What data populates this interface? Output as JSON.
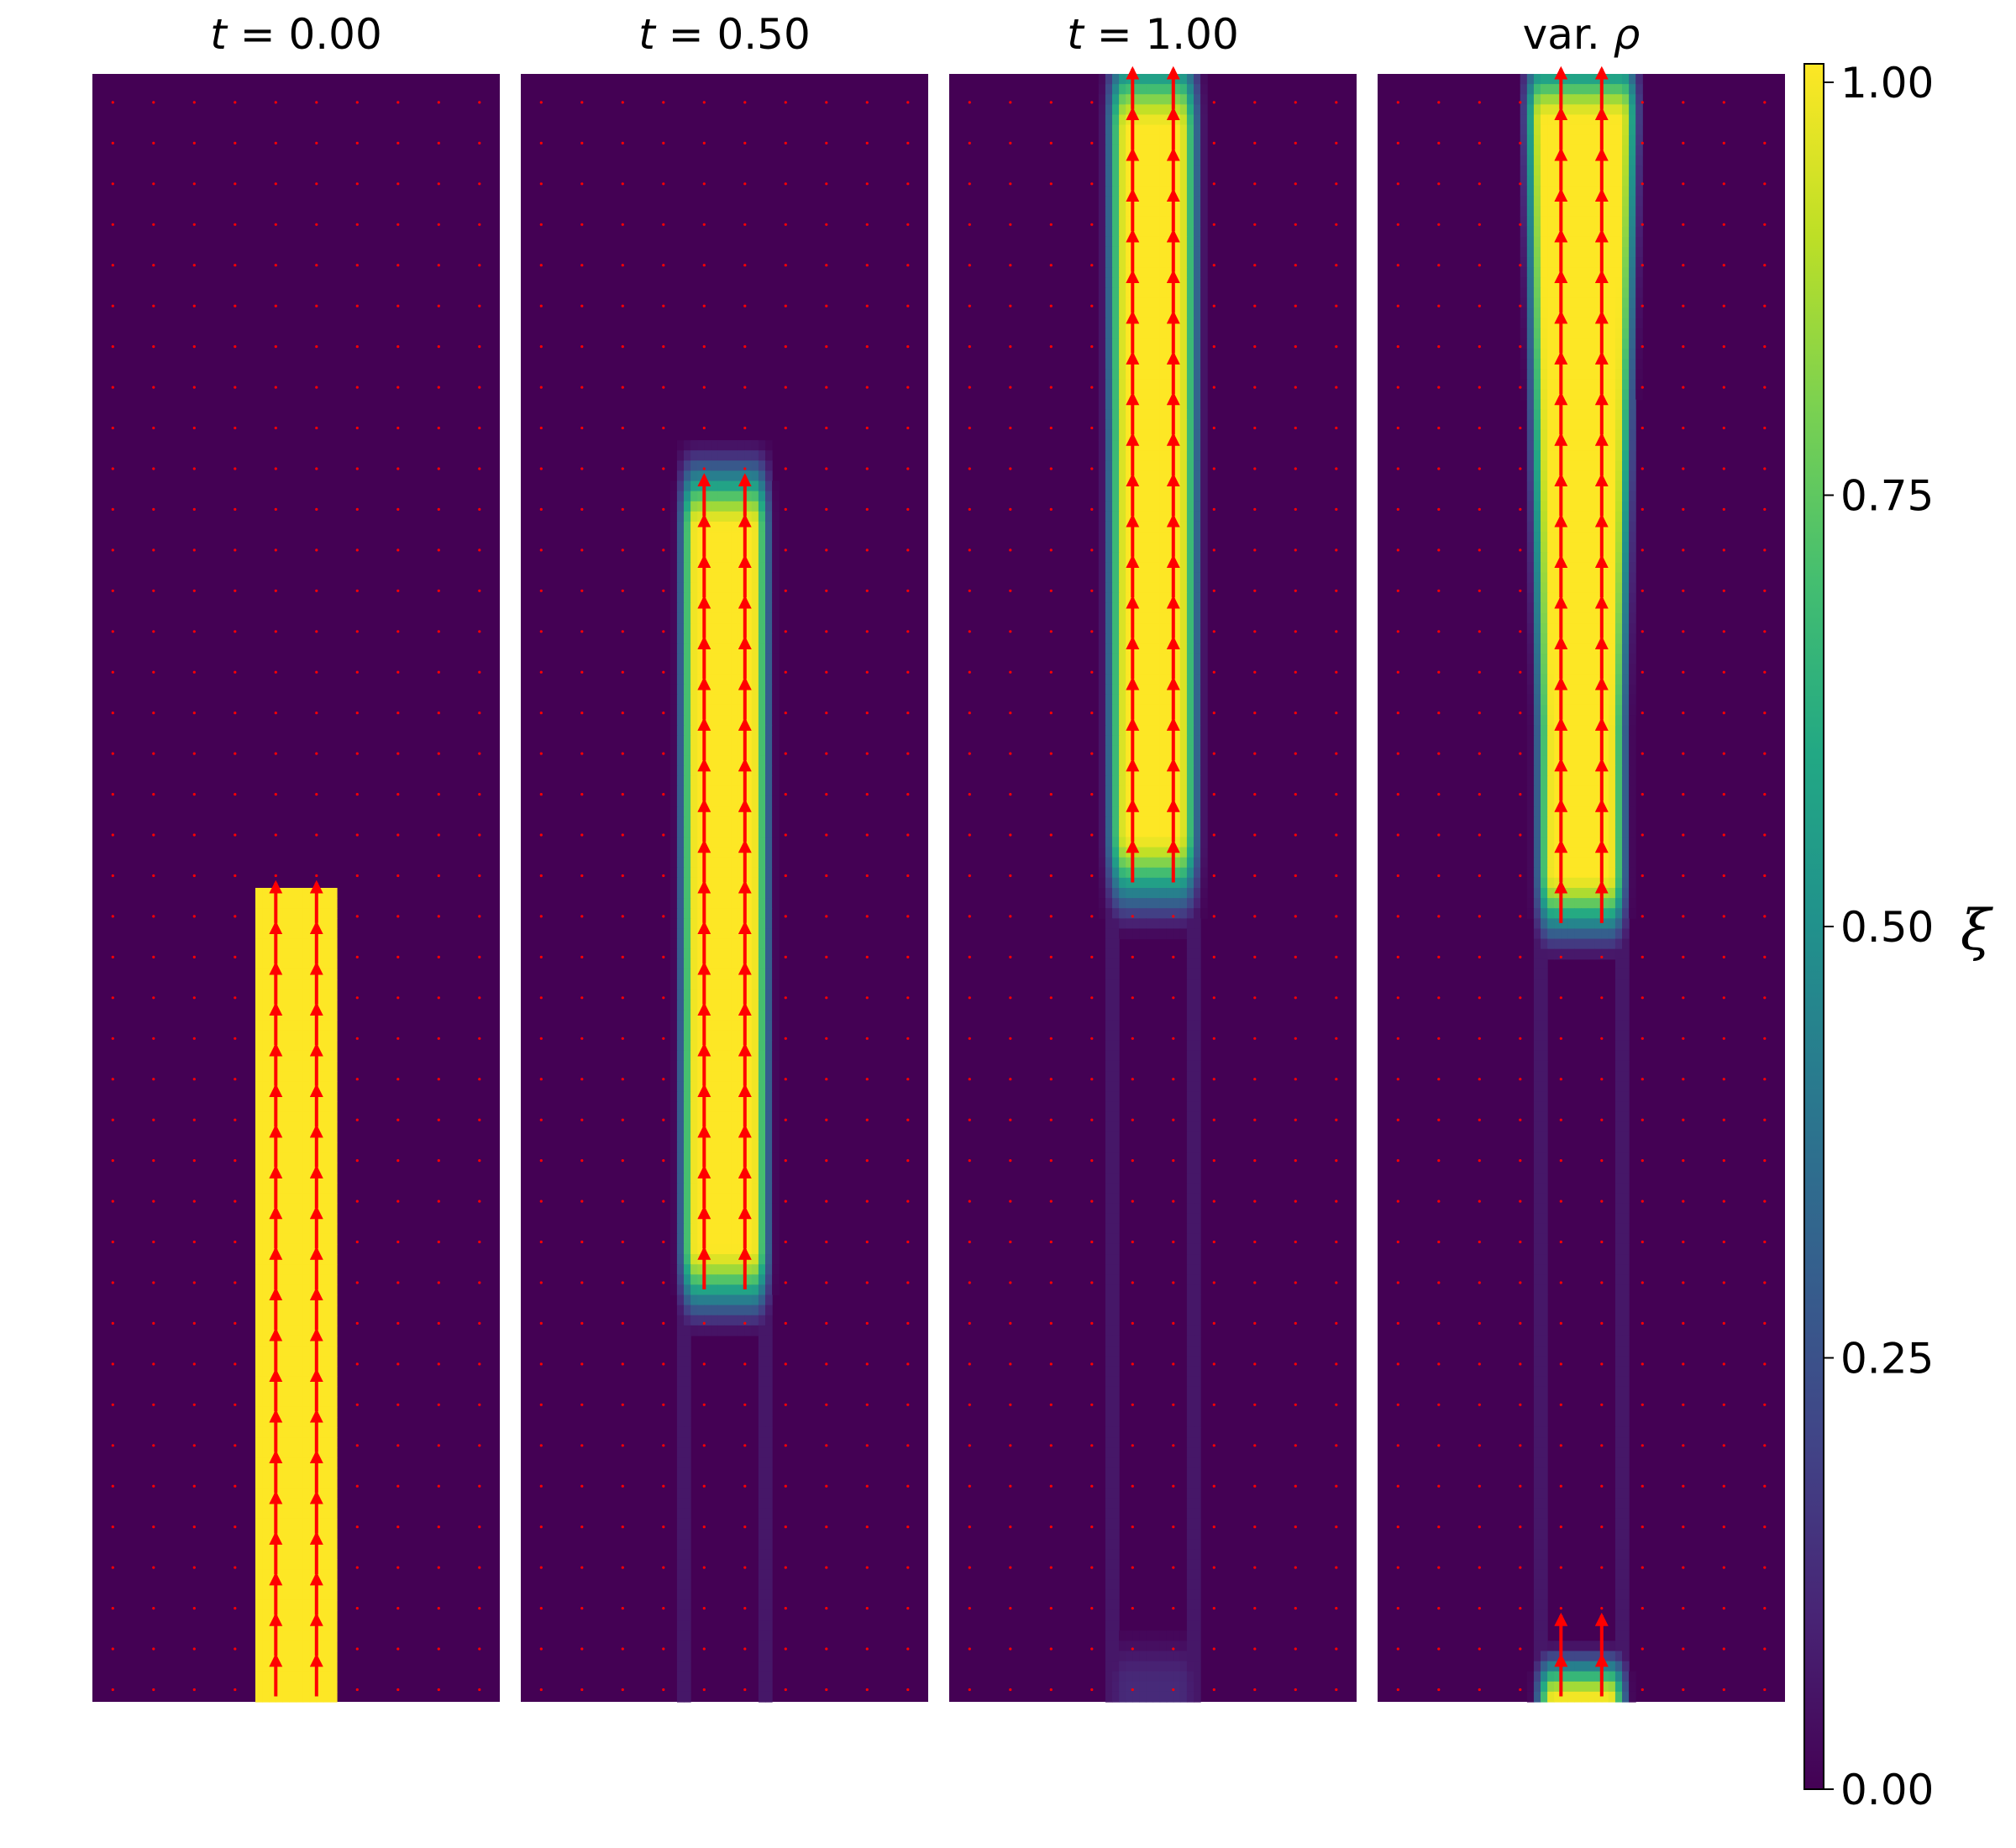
{
  "chart_data": {
    "type": "heatmap",
    "colormap": "viridis",
    "colors": {
      "low": "#440154",
      "high": "#fde725",
      "arrow": "#ff0000"
    },
    "panels": [
      {
        "title": "t = 0.00",
        "title_italic": "t",
        "title_rest": " = 0.00",
        "band": {
          "y_bottom": -0.02,
          "y_top": 0.5,
          "x_left": 0.4,
          "x_right": 0.6,
          "blur": 0.0
        },
        "bottom_blob": null,
        "trail": false,
        "taper": false
      },
      {
        "title": "t = 0.50",
        "title_italic": "t",
        "title_rest": " = 0.50",
        "band": {
          "y_bottom": 0.25,
          "y_top": 0.75,
          "x_left": 0.4,
          "x_right": 0.6,
          "blur": 0.03
        },
        "bottom_blob": null,
        "trail": true,
        "taper": false
      },
      {
        "title": "t = 1.00",
        "title_italic": "t",
        "title_rest": " = 1.00",
        "band": {
          "y_bottom": 0.5,
          "y_top": 1.0,
          "x_left": 0.4,
          "x_right": 0.6,
          "blur": 0.035
        },
        "bottom_blob": {
          "y_top": 0.03,
          "level": 0.12
        },
        "trail": true,
        "taper": false
      },
      {
        "title": "var. ρ",
        "title_italic": "ρ",
        "title_rest_prefix": "var. ",
        "band": {
          "y_bottom": 0.48,
          "y_top": 1.0,
          "x_left": 0.4,
          "x_right": 0.6,
          "blur": 0.03
        },
        "bottom_blob": {
          "y_top": 0.02,
          "level": 1.0
        },
        "trail": true,
        "taper": true
      }
    ],
    "colorbar": {
      "label": "ξ",
      "ticks": [
        0.0,
        0.25,
        0.5,
        0.75,
        1.0
      ],
      "tick_labels": [
        "0.00",
        "0.25",
        "0.50",
        "0.75",
        "1.00"
      ],
      "range": [
        0.0,
        1.0
      ]
    },
    "quiver": {
      "columns_x": [
        0.45,
        0.55
      ],
      "grid_cols": 10,
      "grid_rows": 40
    }
  }
}
